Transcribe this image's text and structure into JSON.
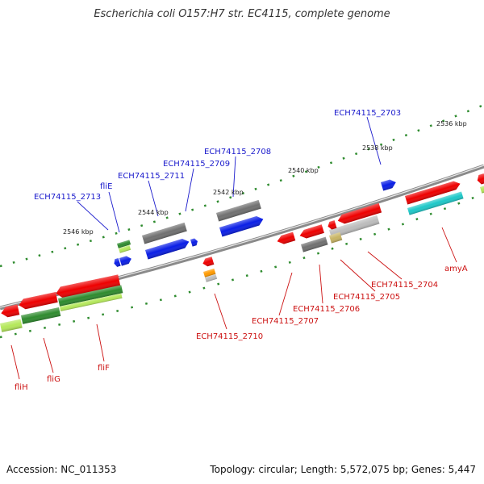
{
  "title": "Escherichia coli O157:H7 str. EC4115, complete genome",
  "footer": {
    "accession": "Accession: NC_011353",
    "summary": "Topology: circular; Length: 5,572,075 bp; Genes: 5,447"
  },
  "colors": {
    "backbone": "#8a8a8a",
    "label_top": "#1a1acc",
    "label_bottom": "#cc1111",
    "tick": "#2e8b2e",
    "cds_red": "#ee0000",
    "cds_blue": "#0a1ee6",
    "cds_gray": "#707070",
    "cds_cyan": "#1ec8c8",
    "cds_green": "#2e8b2e",
    "cds_lightgreen": "#b4e85a",
    "cds_orange": "#ff9a00",
    "cds_khaki": "#c8b464",
    "cds_silver": "#bcbcbc"
  },
  "kbp_ticks": [
    "2536 kbp",
    "2538 kbp",
    "2540 kbp",
    "2542 kbp",
    "2544 kbp",
    "2546 kbp"
  ],
  "top_labels": [
    "ECH74115_2703",
    "ECH74115_2708",
    "ECH74115_2709",
    "ECH74115_2711",
    "fliE",
    "ECH74115_2713"
  ],
  "bottom_labels": [
    "amyA",
    "ECH74115_2704",
    "ECH74115_2705",
    "ECH74115_2706",
    "ECH74115_2707",
    "ECH74115_2710",
    "fliF",
    "fliG",
    "fliH"
  ]
}
